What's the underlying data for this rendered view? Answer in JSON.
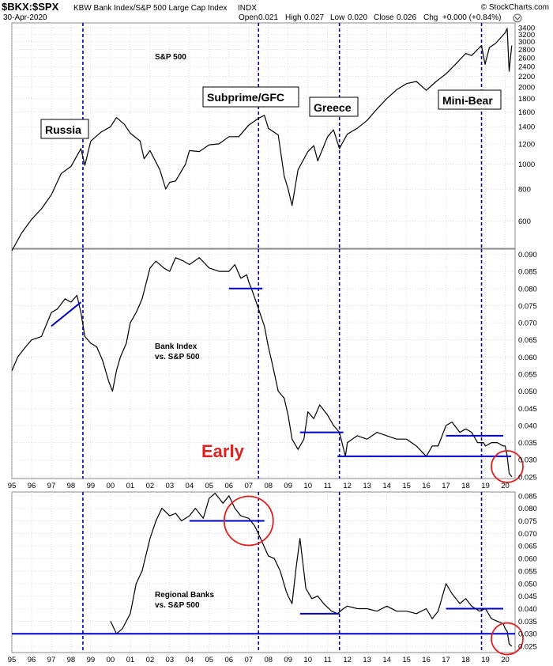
{
  "header": {
    "symbol": "$BKX:$SPX",
    "name": "KBW Bank Index/S&P 500 Large Cap Index",
    "exchange": "INDX",
    "date": "30-Apr-2020",
    "open_label": "Open",
    "open": "0.021",
    "high_label": "High",
    "high": "0.027",
    "low_label": "Low",
    "low": "0.020",
    "close_label": "Close",
    "close": "0.026",
    "chg_label": "Chg",
    "chg": "+0.000 (+0.84%)",
    "watermark": "© StockCharts.com"
  },
  "chart_data": [
    {
      "type": "line",
      "title": "S&P 500",
      "y_scale": "log",
      "ylim": [
        470,
        3550
      ],
      "xlim": [
        1995.0,
        2020.5
      ],
      "y_ticks": [
        3400,
        3200,
        3000,
        2800,
        2600,
        2400,
        2200,
        2000,
        1800,
        1600,
        1400,
        1200,
        1000,
        800,
        600
      ],
      "annotations": [
        {
          "text": "Russia",
          "x": 1997.4,
          "y": 1470
        },
        {
          "text": "Subprime/GFC",
          "x": 2007.0,
          "y": 1770
        },
        {
          "text": "Greece",
          "x": 2011.2,
          "y": 1660
        },
        {
          "text": "Mini-Bear",
          "x": 2018.2,
          "y": 1780
        }
      ],
      "series": [
        {
          "name": "",
          "x": [
            1995.0,
            1995.5,
            1996.0,
            1996.5,
            1997.0,
            1997.5,
            1998.0,
            1998.5,
            1998.7,
            1999.0,
            1999.5,
            2000.0,
            2000.3,
            2000.7,
            2001.0,
            2001.5,
            2001.7,
            2002.0,
            2002.5,
            2002.8,
            2003.0,
            2003.3,
            2003.8,
            2004.0,
            2004.5,
            2005.0,
            2005.5,
            2006.0,
            2006.5,
            2007.0,
            2007.5,
            2007.8,
            2008.0,
            2008.5,
            2008.8,
            2009.0,
            2009.2,
            2009.5,
            2010.0,
            2010.3,
            2010.5,
            2011.0,
            2011.3,
            2011.6,
            2011.8,
            2012.0,
            2012.5,
            2013.0,
            2013.5,
            2014.0,
            2014.5,
            2015.0,
            2015.5,
            2016.0,
            2016.5,
            2017.0,
            2017.5,
            2018.0,
            2018.3,
            2018.8,
            2018.98,
            2019.2,
            2019.5,
            2020.0,
            2020.1,
            2020.2,
            2020.33
          ],
          "y": [
            460,
            540,
            610,
            670,
            760,
            920,
            980,
            1150,
            990,
            1230,
            1330,
            1400,
            1520,
            1430,
            1320,
            1230,
            1050,
            1130,
            950,
            800,
            850,
            860,
            1000,
            1130,
            1120,
            1190,
            1200,
            1280,
            1280,
            1420,
            1510,
            1550,
            1380,
            1300,
            900,
            800,
            690,
            950,
            1120,
            1180,
            1030,
            1280,
            1360,
            1150,
            1230,
            1310,
            1380,
            1480,
            1640,
            1800,
            1950,
            2060,
            2100,
            1940,
            2100,
            2250,
            2460,
            2700,
            2650,
            2900,
            2450,
            2850,
            2950,
            3250,
            3380,
            2300,
            2900
          ]
        }
      ]
    },
    {
      "type": "line",
      "title": "Bank Index vs. S&P 500",
      "ylim": [
        0.0245,
        0.0915
      ],
      "xlim": [
        1995.0,
        2020.5
      ],
      "y_ticks": [
        0.09,
        0.085,
        0.08,
        0.075,
        0.07,
        0.065,
        0.06,
        0.055,
        0.05,
        0.045,
        0.04,
        0.035,
        0.03,
        0.025
      ],
      "x_ticks": [
        "95",
        "96",
        "97",
        "98",
        "99",
        "00",
        "01",
        "02",
        "03",
        "04",
        "05",
        "06",
        "07",
        "08",
        "09",
        "10",
        "11",
        "12",
        "13",
        "14",
        "15",
        "16",
        "17",
        "18",
        "19",
        "20"
      ],
      "annotation": "Early",
      "series": [
        {
          "name": "",
          "x": [
            1995.0,
            1995.3,
            1995.7,
            1996.0,
            1996.5,
            1997.0,
            1997.3,
            1997.7,
            1998.0,
            1998.3,
            1998.5,
            1998.7,
            1999.0,
            1999.3,
            1999.6,
            1999.9,
            2000.1,
            2000.3,
            2000.5,
            2000.8,
            2001.0,
            2001.3,
            2001.6,
            2002.0,
            2002.3,
            2002.7,
            2003.0,
            2003.3,
            2003.7,
            2004.0,
            2004.5,
            2005.0,
            2005.5,
            2006.0,
            2006.3,
            2006.6,
            2006.9,
            2007.0,
            2007.2,
            2007.5,
            2007.8,
            2008.0,
            2008.2,
            2008.5,
            2008.8,
            2009.0,
            2009.2,
            2009.5,
            2009.8,
            2010.0,
            2010.3,
            2010.6,
            2011.0,
            2011.3,
            2011.6,
            2011.9,
            2012.0,
            2012.5,
            2013.0,
            2013.5,
            2014.0,
            2014.5,
            2015.0,
            2015.5,
            2016.0,
            2016.3,
            2016.6,
            2017.0,
            2017.3,
            2017.7,
            2018.0,
            2018.3,
            2018.6,
            2018.9,
            2019.0,
            2019.3,
            2019.6,
            2019.9,
            2020.0,
            2020.1,
            2020.2,
            2020.33
          ],
          "y": [
            0.056,
            0.06,
            0.063,
            0.065,
            0.066,
            0.073,
            0.074,
            0.077,
            0.076,
            0.078,
            0.073,
            0.066,
            0.064,
            0.063,
            0.059,
            0.053,
            0.05,
            0.056,
            0.06,
            0.064,
            0.07,
            0.073,
            0.077,
            0.086,
            0.088,
            0.086,
            0.085,
            0.089,
            0.088,
            0.087,
            0.089,
            0.086,
            0.085,
            0.085,
            0.087,
            0.083,
            0.084,
            0.082,
            0.079,
            0.074,
            0.069,
            0.063,
            0.058,
            0.05,
            0.048,
            0.043,
            0.036,
            0.033,
            0.036,
            0.044,
            0.042,
            0.046,
            0.043,
            0.04,
            0.038,
            0.031,
            0.035,
            0.037,
            0.036,
            0.038,
            0.037,
            0.036,
            0.036,
            0.034,
            0.031,
            0.034,
            0.034,
            0.04,
            0.041,
            0.038,
            0.039,
            0.038,
            0.035,
            0.035,
            0.034,
            0.035,
            0.035,
            0.034,
            0.034,
            0.031,
            0.026,
            0.025
          ]
        }
      ],
      "ref_lines": [
        {
          "x": [
            1997.0,
            1998.5
          ],
          "y": [
            0.069,
            0.076
          ]
        },
        {
          "x": [
            2006.0,
            2007.7
          ],
          "y": [
            0.08,
            0.08
          ]
        },
        {
          "x": [
            2009.6,
            2011.8
          ],
          "y": [
            0.038,
            0.038
          ]
        },
        {
          "x": [
            2011.5,
            2020.3
          ],
          "y": [
            0.031,
            0.031
          ]
        },
        {
          "x": [
            2017.0,
            2019.9
          ],
          "y": [
            0.037,
            0.037
          ]
        }
      ],
      "circles": [
        {
          "x": 2020.1,
          "y": 0.028
        }
      ]
    },
    {
      "type": "line",
      "title": "Regional Banks vs. S&P 500",
      "ylim": [
        0.0225,
        0.0865
      ],
      "xlim": [
        1995.0,
        2020.5
      ],
      "y_ticks": [
        0.085,
        0.08,
        0.075,
        0.07,
        0.065,
        0.06,
        0.055,
        0.05,
        0.045,
        0.04,
        0.035,
        0.03,
        0.025
      ],
      "x_ticks": [
        "95",
        "96",
        "97",
        "98",
        "99",
        "00",
        "01",
        "02",
        "03",
        "04",
        "05",
        "06",
        "07",
        "08",
        "09",
        "10",
        "11",
        "12",
        "13",
        "14",
        "15",
        "16",
        "17",
        "18",
        "19",
        "20"
      ],
      "series": [
        {
          "name": "",
          "x": [
            2000.0,
            2000.3,
            2000.6,
            2001.0,
            2001.3,
            2001.6,
            2002.0,
            2002.3,
            2002.6,
            2003.0,
            2003.3,
            2003.6,
            2004.0,
            2004.3,
            2004.7,
            2005.0,
            2005.3,
            2005.7,
            2006.0,
            2006.3,
            2006.6,
            2007.0,
            2007.3,
            2007.6,
            2008.0,
            2008.3,
            2008.6,
            2008.9,
            2009.0,
            2009.2,
            2009.4,
            2009.6,
            2009.9,
            2010.2,
            2010.5,
            2010.8,
            2011.2,
            2011.5,
            2011.8,
            2012.0,
            2012.5,
            2013.0,
            2013.5,
            2014.0,
            2014.5,
            2015.0,
            2015.5,
            2016.0,
            2016.3,
            2016.6,
            2017.0,
            2017.3,
            2017.7,
            2018.0,
            2018.3,
            2018.7,
            2019.0,
            2019.3,
            2019.6,
            2019.9,
            2020.0,
            2020.1,
            2020.2,
            2020.33
          ],
          "y": [
            0.035,
            0.03,
            0.032,
            0.038,
            0.05,
            0.055,
            0.068,
            0.075,
            0.08,
            0.077,
            0.078,
            0.075,
            0.077,
            0.08,
            0.076,
            0.084,
            0.086,
            0.082,
            0.085,
            0.08,
            0.077,
            0.076,
            0.073,
            0.068,
            0.061,
            0.06,
            0.055,
            0.047,
            0.045,
            0.042,
            0.056,
            0.068,
            0.048,
            0.044,
            0.045,
            0.042,
            0.039,
            0.038,
            0.04,
            0.041,
            0.04,
            0.04,
            0.039,
            0.041,
            0.039,
            0.039,
            0.038,
            0.04,
            0.036,
            0.039,
            0.05,
            0.046,
            0.042,
            0.044,
            0.041,
            0.039,
            0.04,
            0.036,
            0.035,
            0.034,
            0.032,
            0.031,
            0.026,
            0.025
          ]
        }
      ],
      "ref_lines": [
        {
          "x": [
            2004.0,
            2007.8
          ],
          "y": [
            0.075,
            0.075
          ]
        },
        {
          "x": [
            2009.6,
            2011.6
          ],
          "y": [
            0.038,
            0.038
          ]
        },
        {
          "x": [
            1995.0,
            2020.5
          ],
          "y": [
            0.03,
            0.03
          ]
        },
        {
          "x": [
            2017.0,
            2019.9
          ],
          "y": [
            0.04,
            0.04
          ]
        }
      ],
      "circles": [
        {
          "x": 2007.0,
          "y": 0.075
        },
        {
          "x": 2020.1,
          "y": 0.028
        }
      ]
    }
  ],
  "event_lines_x": [
    1998.6,
    2007.5,
    2011.6,
    2018.8
  ],
  "colors": {
    "price": "#000000",
    "event": "#0000b0",
    "ref": "#0000cc",
    "circle": "#e02020",
    "grid": "#c8c8c8",
    "axis": "#888888"
  }
}
